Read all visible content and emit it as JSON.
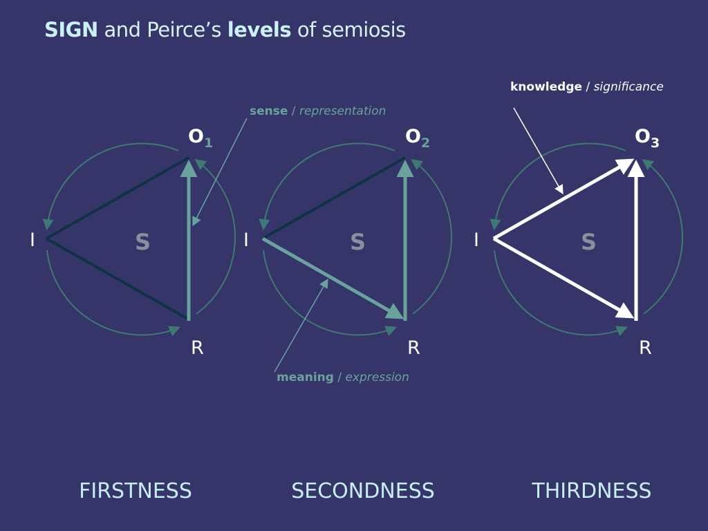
{
  "slide": {
    "title": {
      "bold1": "SIGN",
      "mid": " and Peirce’s ",
      "bold2": "levels",
      "tail": " of semiosis"
    },
    "colors": {
      "background": "#35356a",
      "circle": "#3f7a72",
      "dark_line": "#0e3344",
      "teal_line": "#6aa39e",
      "white_line": "#ffffff",
      "label_teal": "#6aa39e",
      "label_light": "#c6eef4"
    },
    "diagrams": [
      {
        "id": "firstness",
        "caption": "FIRSTNESS",
        "center_label": "S",
        "vertex_interpretant": "I",
        "vertex_object": "O",
        "object_subscript": "1",
        "vertex_representamen": "R",
        "active_edges": [
          "R-O"
        ]
      },
      {
        "id": "secondness",
        "caption": "SECONDNESS",
        "center_label": "S",
        "vertex_interpretant": "I",
        "vertex_object": "O",
        "object_subscript": "2",
        "vertex_representamen": "R",
        "active_edges": [
          "R-O",
          "I-R"
        ]
      },
      {
        "id": "thirdness",
        "caption": "THIRDNESS",
        "center_label": "S",
        "vertex_interpretant": "I",
        "vertex_object": "O",
        "object_subscript": "3",
        "vertex_representamen": "R",
        "active_edges": [
          "R-O",
          "I-R",
          "I-O"
        ]
      }
    ],
    "annotations": {
      "sense": {
        "bold": "sense",
        "sep": " / ",
        "italic": "representation"
      },
      "meaning": {
        "bold": "meaning",
        "sep": " / ",
        "italic": "expression"
      },
      "knowledge": {
        "bold": "knowledge",
        "sep": " / ",
        "italic": "significance"
      }
    }
  }
}
